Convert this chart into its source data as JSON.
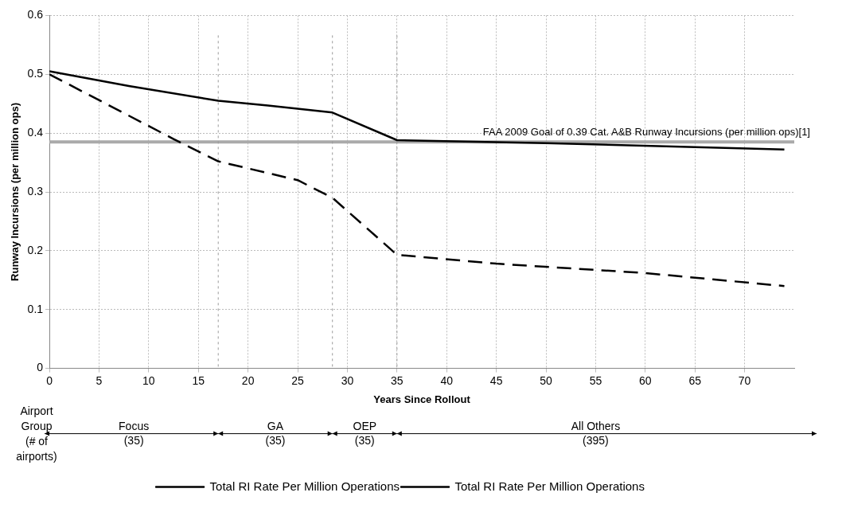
{
  "chart_data": {
    "type": "line",
    "xlabel": "Years Since Rollout",
    "ylabel": "Runway Incursions (per million ops)",
    "xlim": [
      0,
      75
    ],
    "xticks": [
      0,
      5,
      10,
      15,
      20,
      25,
      30,
      35,
      40,
      45,
      50,
      55,
      60,
      65,
      70
    ],
    "ylim": [
      0,
      0.6
    ],
    "yticks": [
      0,
      0.1,
      0.2,
      0.3,
      0.4,
      0.5,
      0.6
    ],
    "grid": true,
    "legend": "bottom",
    "marker": "none",
    "series": [
      {
        "name": "Total RI Rate Per Million Operations",
        "color": "#000000",
        "line_style": "solid",
        "x": [
          0,
          8,
          17,
          22,
          28.5,
          35,
          50,
          74
        ],
        "values": [
          0.505,
          0.48,
          0.455,
          0.447,
          0.435,
          0.388,
          0.383,
          0.372
        ]
      },
      {
        "name": "Total RI Rate Per Million Operations",
        "color": "#000000",
        "line_style": "dashed",
        "x": [
          0,
          12.5,
          17,
          25,
          28.5,
          35,
          45,
          60,
          74
        ],
        "values": [
          0.5,
          0.39,
          0.352,
          0.32,
          0.29,
          0.193,
          0.178,
          0.162,
          0.14
        ]
      }
    ],
    "ref_lines": [
      {
        "axis": "y",
        "value": 0.385,
        "label": "FAA 2009 Goal of 0.39 Cat. A&B Runway Incursions (per million ops)[1]",
        "color": "#aaaaaa"
      },
      {
        "axis": "x",
        "value": 17,
        "color": "#999999",
        "line_style": "dotted"
      },
      {
        "axis": "x",
        "value": 28.5,
        "color": "#999999",
        "line_style": "dotted"
      },
      {
        "axis": "x",
        "value": 35,
        "color": "#999999",
        "line_style": "dotted"
      }
    ],
    "annotations": [
      "Airport Group (# of airports)",
      "Focus (35)",
      "GA (35)",
      "OEP (35)",
      "All Others (395)"
    ]
  }
}
